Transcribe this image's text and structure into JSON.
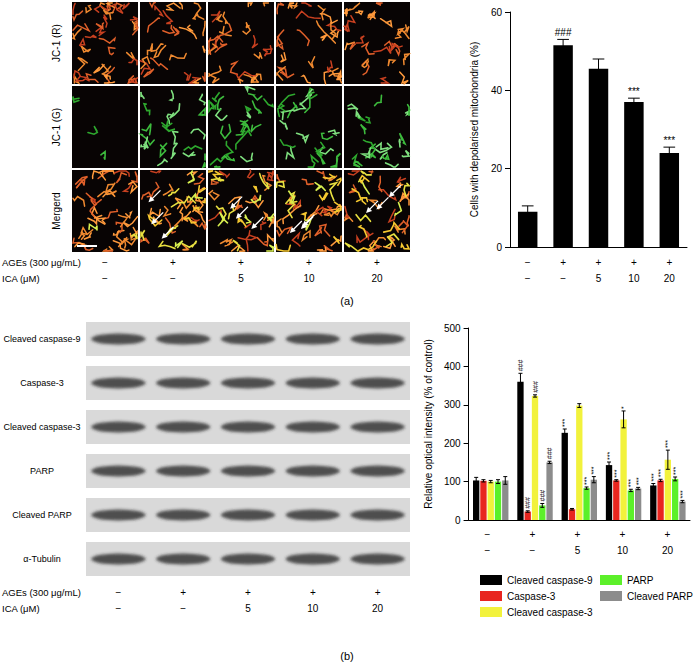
{
  "figure": {
    "panel_labels": [
      "(a)",
      "(b)"
    ],
    "treatments": [
      {
        "label": "AGEs (300 μg/mL)",
        "values": [
          "−",
          "+",
          "+",
          "+",
          "+"
        ]
      },
      {
        "label": "ICA (μM)",
        "values": [
          "−",
          "−",
          "5",
          "10",
          "20"
        ]
      }
    ],
    "microscopy_rows": [
      "JC-1 (R)",
      "JC-1 (G)",
      "Mergerd"
    ],
    "blot_rows": [
      "Cleaved caspase-9",
      "Caspase-3",
      "Cleaved caspase-3",
      "PARP",
      "Cleaved PARP",
      "α-Tubulin"
    ]
  },
  "chart_data": [
    {
      "type": "bar",
      "categories": [
        null,
        null,
        null,
        null,
        null
      ],
      "values": [
        9,
        51.5,
        45.5,
        37,
        24
      ],
      "errors": [
        1.5,
        1.5,
        2.5,
        1,
        1.5
      ],
      "significance": [
        null,
        "###",
        null,
        "***",
        "***"
      ],
      "color": "#000000",
      "ylabel": "Cells with depolarised mitochondria (%)",
      "ylim": [
        0,
        60
      ],
      "yticks": [
        0,
        20,
        40,
        60
      ]
    },
    {
      "type": "bar",
      "categories": [
        null,
        null,
        null,
        null,
        null
      ],
      "series": [
        {
          "name": "Cleaved caspase-9",
          "color": "#000000",
          "values": [
            103,
            360,
            227,
            143,
            90
          ],
          "errors": [
            8,
            22,
            10,
            8,
            5
          ],
          "significance": [
            null,
            "###",
            "***",
            "***",
            "***"
          ]
        },
        {
          "name": "Caspase-3",
          "color": "#e8251f",
          "values": [
            102,
            22,
            28,
            103,
            103
          ],
          "errors": [
            3,
            2,
            2,
            2,
            3
          ],
          "significance": [
            null,
            "###",
            null,
            "***",
            "***"
          ]
        },
        {
          "name": "Cleaved caspase-3",
          "color": "#f2f23c",
          "values": [
            100,
            323,
            298,
            262,
            157
          ],
          "errors": [
            3,
            3,
            5,
            22,
            25
          ],
          "significance": [
            null,
            "###",
            null,
            "*",
            "***"
          ]
        },
        {
          "name": "PARP",
          "color": "#5cf02a",
          "values": [
            100,
            38,
            83,
            77,
            107
          ],
          "errors": [
            5,
            5,
            3,
            3,
            5
          ],
          "significance": [
            null,
            "###",
            "***",
            "***",
            "***"
          ]
        },
        {
          "name": "Cleaved PARP",
          "color": "#8c8c8c",
          "values": [
            103,
            150,
            105,
            82,
            48
          ],
          "errors": [
            10,
            3,
            8,
            3,
            3
          ],
          "significance": [
            null,
            "###",
            "***",
            "***",
            "***"
          ]
        }
      ],
      "ylabel": "Relative optical intensity (% of control)",
      "ylim": [
        0,
        500
      ],
      "yticks": [
        0,
        100,
        200,
        300,
        400,
        500
      ],
      "legend": "bottom"
    }
  ]
}
